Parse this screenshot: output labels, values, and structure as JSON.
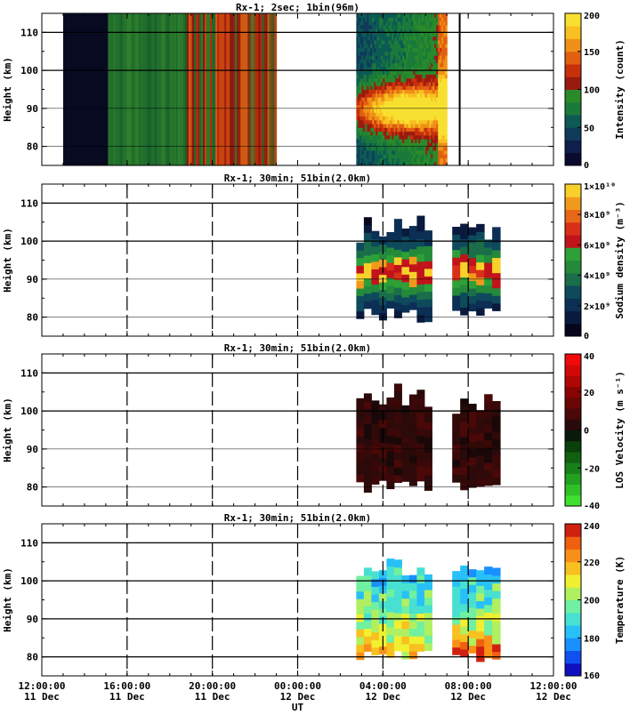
{
  "chart_data": [
    {
      "type": "heatmap",
      "title": "Rx-1;  2sec; 1bin(96m)",
      "ylabel": "Height (km)",
      "ylim": [
        75,
        115
      ],
      "yticks": [
        "80",
        "90",
        "100",
        "110"
      ],
      "colorbar": {
        "label": "Intensity (count)",
        "ticks": [
          "0",
          "50",
          "100",
          "150",
          "200"
        ],
        "colors": [
          "#0a0a2e",
          "#0d1f4a",
          "#0f3a5a",
          "#0d5a55",
          "#1a7a3a",
          "#2a8a2a",
          "#9a1a10",
          "#c8300c",
          "#e06010",
          "#f09018",
          "#f8c020",
          "#f8e030"
        ]
      },
      "data_blocks": [
        {
          "x": [
            13.0,
            15.1
          ],
          "level": "dark"
        },
        {
          "x": [
            15.1,
            18.8
          ],
          "level": "green"
        },
        {
          "x": [
            18.8,
            23.0
          ],
          "level": "green-red"
        },
        {
          "x": [
            26.75,
            31.0
          ],
          "level": "blue-red-layer"
        }
      ],
      "markers": [
        31.6
      ]
    },
    {
      "type": "heatmap",
      "title": "Rx-1; 30min; 51bin(2.0km)",
      "ylabel": "Height (km)",
      "ylim": [
        75,
        115
      ],
      "yticks": [
        "80",
        "90",
        "100",
        "110"
      ],
      "colorbar": {
        "label": "Sodium density (m⁻³)",
        "ticks": [
          "0",
          "2×10⁹",
          "4×10⁹",
          "6×10⁹",
          "8×10⁹",
          "1×10¹⁰"
        ],
        "colors": [
          "#05051f",
          "#0a1a3e",
          "#0c2f55",
          "#0e4a5c",
          "#1a6e4a",
          "#248a3a",
          "#2ea038",
          "#c0141a",
          "#d83018",
          "#e86818",
          "#f09a1c",
          "#f8d02a"
        ]
      },
      "data_blocks": [
        {
          "x": [
            26.75,
            30.3
          ],
          "y": [
            78.5,
            106.5
          ],
          "level": "layered"
        },
        {
          "x": [
            31.25,
            33.5
          ],
          "y": [
            78.5,
            106.0
          ],
          "level": "layered"
        }
      ]
    },
    {
      "type": "heatmap",
      "title": "Rx-1; 30min; 51bin(2.0km)",
      "ylabel": "Height (km)",
      "ylim": [
        75,
        115
      ],
      "yticks": [
        "80",
        "90",
        "100",
        "110"
      ],
      "colorbar": {
        "label": "LOS Velocity (m s⁻¹)",
        "ticks": [
          "-40",
          "-20",
          "0",
          "20",
          "40"
        ],
        "colors": [
          "#40e030",
          "#30c028",
          "#22a020",
          "#188018",
          "#106010",
          "#0a400a",
          "#0a1a0a",
          "#2a0a0a",
          "#4a0808",
          "#6a0606",
          "#8a0404",
          "#b00606",
          "#d00808",
          "#f00a0a"
        ]
      },
      "data_blocks": [
        {
          "x": [
            26.75,
            30.3
          ],
          "y": [
            78.5,
            106.5
          ],
          "level": "dark-red"
        },
        {
          "x": [
            31.25,
            33.5
          ],
          "y": [
            78.5,
            106.0
          ],
          "level": "dark-red"
        }
      ]
    },
    {
      "type": "heatmap",
      "title": "Rx-1; 30min; 51bin(2.0km)",
      "ylabel": "Height (km)",
      "ylim": [
        75,
        115
      ],
      "yticks": [
        "80",
        "90",
        "100",
        "110"
      ],
      "colorbar": {
        "label": "Temperature (K)",
        "ticks": [
          "160",
          "180",
          "200",
          "220",
          "240"
        ],
        "colors": [
          "#1010c0",
          "#1050f0",
          "#1890ff",
          "#28c0f8",
          "#48e0d0",
          "#70f0a0",
          "#b0f060",
          "#f0f030",
          "#f8c020",
          "#f89018",
          "#f06010",
          "#d02010"
        ]
      },
      "data_blocks": [
        {
          "x": [
            26.75,
            30.3
          ],
          "y": [
            78.5,
            106.5
          ],
          "level": "temperature"
        },
        {
          "x": [
            31.25,
            33.5
          ],
          "y": [
            78.5,
            106.0
          ],
          "level": "temperature"
        }
      ]
    }
  ],
  "shared_x": {
    "label": "UT",
    "range": [
      12,
      36
    ],
    "ticks": [
      {
        "value": 12,
        "time": "12:00:00",
        "date": "11 Dec"
      },
      {
        "value": 16,
        "time": "16:00:00",
        "date": "11 Dec"
      },
      {
        "value": 20,
        "time": "20:00:00",
        "date": "11 Dec"
      },
      {
        "value": 24,
        "time": "00:00:00",
        "date": "12 Dec"
      },
      {
        "value": 28,
        "time": "04:00:00",
        "date": "12 Dec"
      },
      {
        "value": 32,
        "time": "08:00:00",
        "date": "12 Dec"
      },
      {
        "value": 36,
        "time": "12:00:00",
        "date": "12 Dec"
      }
    ],
    "dashed_lines": [
      16,
      20,
      24,
      28,
      32
    ]
  }
}
